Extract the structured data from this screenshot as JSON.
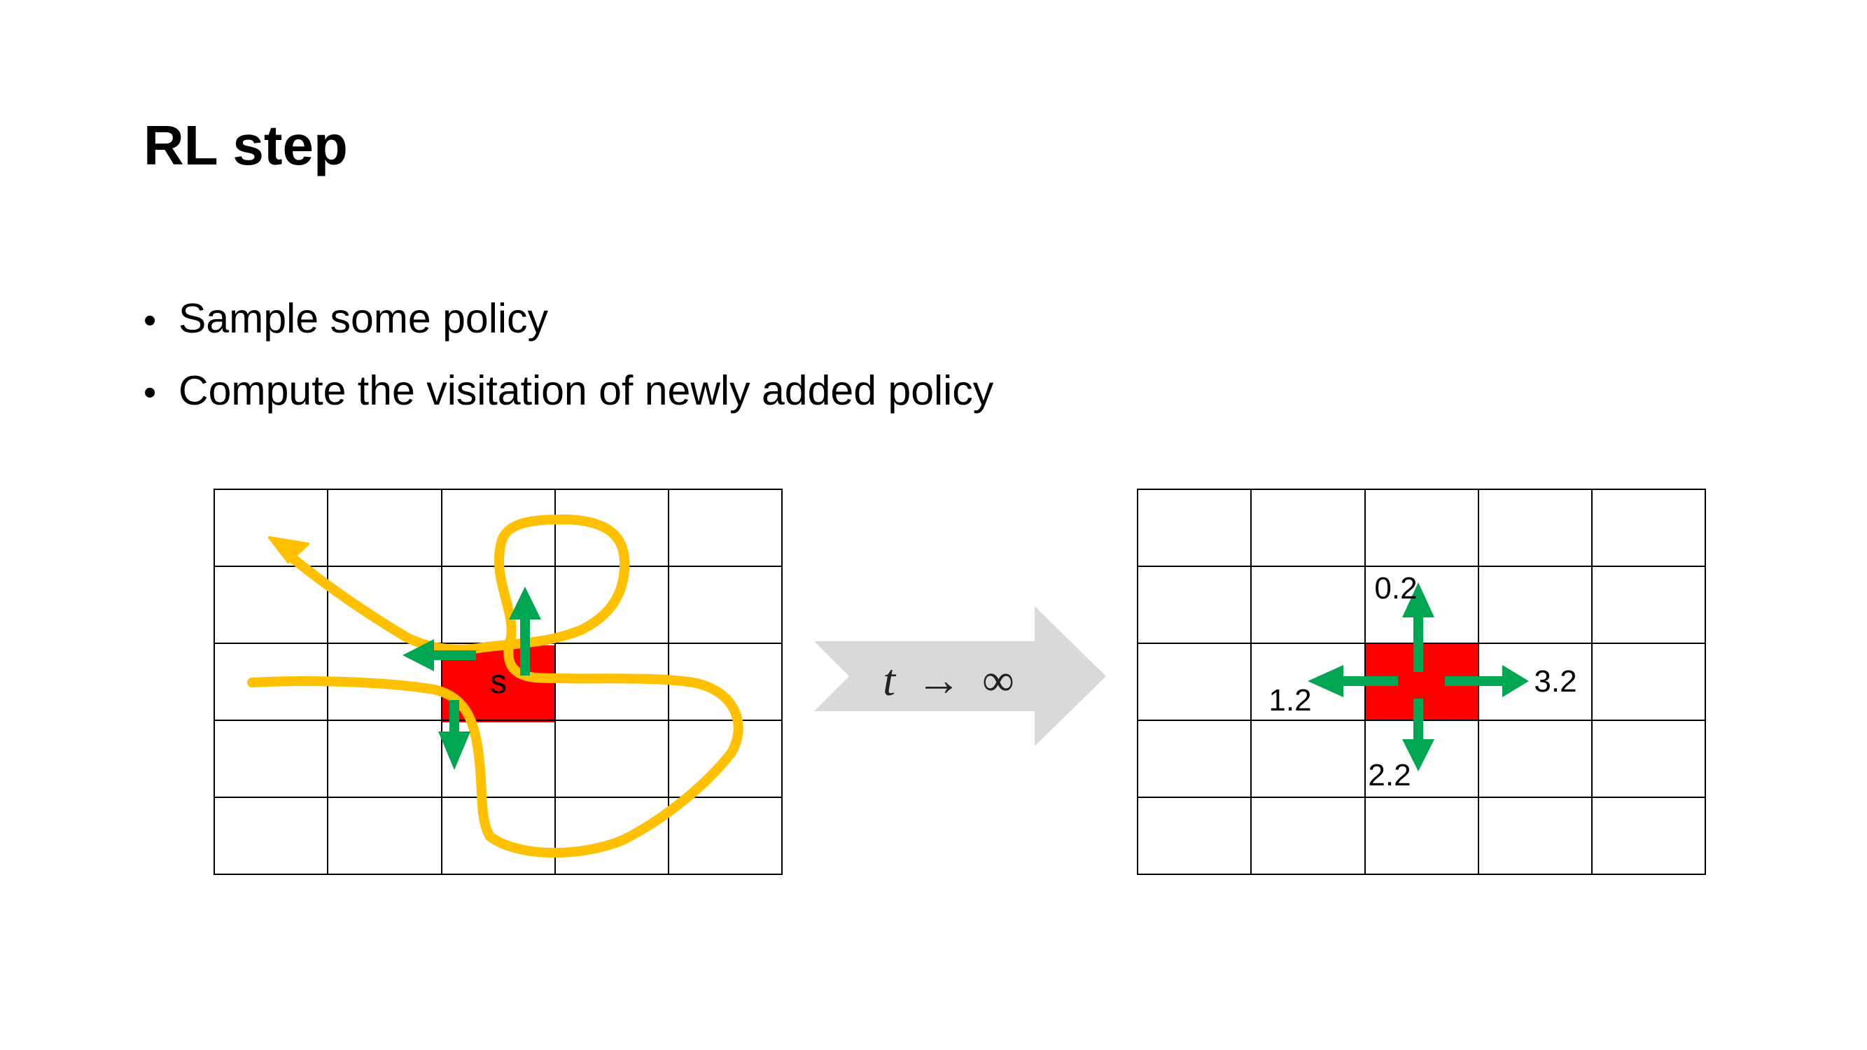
{
  "title": "RL step",
  "bullets": [
    "Sample some policy",
    "Compute the visitation of newly added policy"
  ],
  "left_grid": {
    "cols": 5,
    "rows": 5,
    "highlight_cell": {
      "col": 2,
      "row": 2
    },
    "state_label": "s"
  },
  "transition": {
    "variable": "t",
    "arrow": "→",
    "infinity": "∞"
  },
  "right_grid": {
    "cols": 5,
    "rows": 5,
    "highlight_cell": {
      "col": 2,
      "row": 2
    },
    "action_values": {
      "up": "0.2",
      "left": "1.2",
      "right": "3.2",
      "down": "2.2"
    }
  },
  "colors": {
    "highlight": "#FF0000",
    "arrow": "#00A651",
    "trajectory": "#FFC000",
    "transition_arrow": "#D9D9D9",
    "grid_line": "#000000"
  }
}
